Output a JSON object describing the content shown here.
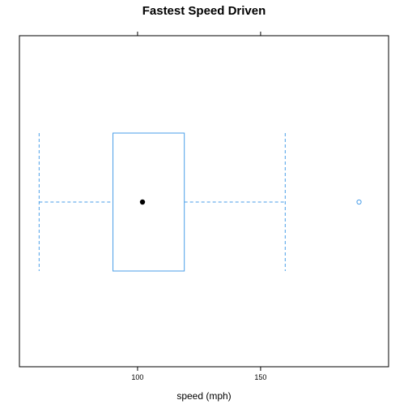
{
  "chart_data": {
    "type": "boxplot",
    "title": "Fastest Speed Driven",
    "xlabel": "speed (mph)",
    "xlim": [
      52,
      202
    ],
    "ticks": [
      100,
      150
    ],
    "tick_labels": [
      "100",
      "150"
    ],
    "box": {
      "whisker_low": 60,
      "q1": 90,
      "median": 102,
      "q3": 119,
      "whisker_high": 160
    },
    "outliers": [
      190
    ],
    "colors": {
      "box": "#4a9ee8",
      "median": "#000000",
      "frame": "#000000"
    }
  }
}
